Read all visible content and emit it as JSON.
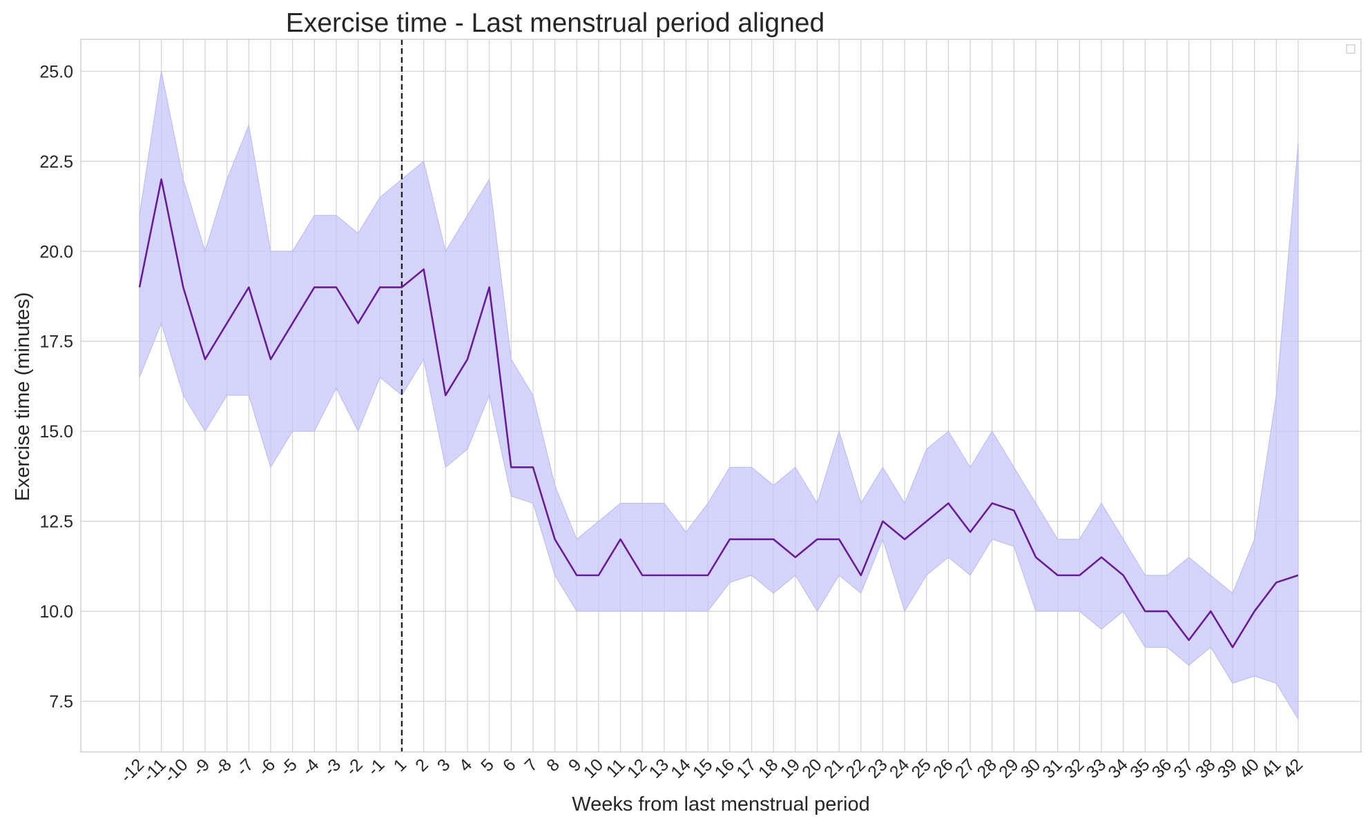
{
  "chart_data": {
    "type": "line",
    "title": "Exercise time - Last menstrual period aligned",
    "xlabel": "Weeks from last menstrual period",
    "ylabel": "Exercise time (minutes)",
    "x_ticks": [
      "-12",
      "-11",
      "-10",
      "-9",
      "-8",
      "-7",
      "-6",
      "-5",
      "-4",
      "-3",
      "-2",
      "-1",
      "1",
      "2",
      "3",
      "4",
      "5",
      "6",
      "7",
      "8",
      "9",
      "10",
      "11",
      "12",
      "13",
      "14",
      "15",
      "16",
      "17",
      "18",
      "19",
      "20",
      "21",
      "22",
      "23",
      "24",
      "25",
      "26",
      "27",
      "28",
      "29",
      "30",
      "31",
      "32",
      "33",
      "34",
      "35",
      "36",
      "37",
      "38",
      "39",
      "40",
      "41",
      "42"
    ],
    "y_ticks": [
      "7.5",
      "10.0",
      "12.5",
      "15.0",
      "17.5",
      "20.0",
      "22.5",
      "25.0"
    ],
    "ylim": [
      6,
      26
    ],
    "grid": true,
    "legend": "top-right (empty)",
    "vline_at": "1",
    "series": [
      {
        "values": [
          19,
          22,
          19,
          17,
          18,
          19,
          17,
          18,
          19,
          19,
          18,
          19,
          19,
          19.5,
          16,
          17,
          19,
          14,
          14,
          12,
          11,
          11,
          12,
          11,
          11,
          11,
          11,
          12,
          12,
          12,
          11.5,
          12,
          12,
          11,
          12.5,
          12,
          12.5,
          13,
          12.2,
          13,
          12.8,
          11.5,
          11,
          11,
          11.5,
          11,
          10,
          10,
          9.2,
          10,
          9,
          10,
          10.8,
          11
        ],
        "lower": [
          16.5,
          18,
          16,
          15,
          16,
          16,
          14,
          15,
          15,
          16.2,
          15,
          16.5,
          16,
          17,
          14,
          14.5,
          16,
          13.2,
          13,
          11,
          10,
          10,
          10,
          10,
          10,
          10,
          10,
          10.8,
          11,
          10.5,
          11,
          10,
          11,
          10.5,
          12,
          10,
          11,
          11.5,
          11,
          12,
          11.8,
          10,
          10,
          10,
          9.5,
          10,
          9,
          9,
          8.5,
          9,
          8,
          8.2,
          8,
          7
        ],
        "upper": [
          21,
          25,
          22,
          20,
          22,
          23.5,
          20,
          20,
          21,
          21,
          20.5,
          21.5,
          22,
          22.5,
          20,
          21,
          22,
          17,
          16,
          13.5,
          12,
          12.5,
          13,
          13,
          13,
          12.2,
          13,
          14,
          14,
          13.5,
          14,
          13,
          15,
          13,
          14,
          13,
          14.5,
          15,
          14,
          15,
          14,
          13,
          12,
          12,
          13,
          12,
          11,
          11,
          11.5,
          11,
          10.5,
          12,
          16,
          23
        ]
      }
    ],
    "colors": {
      "line": "#6a1b9a",
      "band": "#c7c6fb",
      "vline": "#222222",
      "grid": "#d3d3d3"
    }
  }
}
